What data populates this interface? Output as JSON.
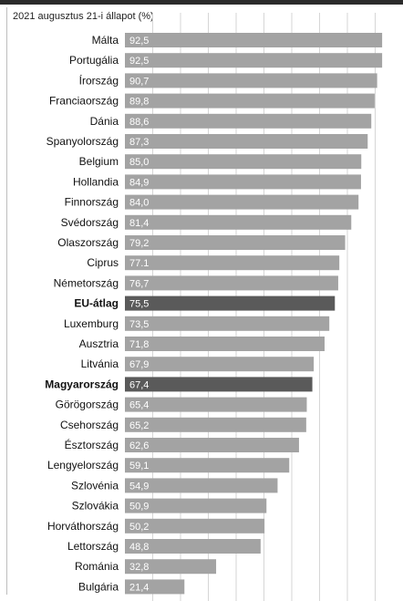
{
  "chart_data": {
    "type": "bar",
    "orientation": "horizontal",
    "subtitle": "2021 augusztus 21-i állapot (%)",
    "title": "",
    "xlabel": "",
    "ylabel": "",
    "xlim": [
      0,
      100
    ],
    "grid": true,
    "categories": [
      "Málta",
      "Portugália",
      "Írország",
      "Franciaország",
      "Dánia",
      "Spanyolország",
      "Belgium",
      "Hollandia",
      "Finnország",
      "Svédország",
      "Olaszország",
      "Ciprus",
      "Németország",
      "EU-átlag",
      "Luxemburg",
      "Ausztria",
      "Litvánia",
      "Magyarország",
      "Görögország",
      "Csehország",
      "Észtország",
      "Lengyelország",
      "Szlovénia",
      "Szlovákia",
      "Horváthország",
      "Lettország",
      "Románia",
      "Bulgária"
    ],
    "values": [
      92.5,
      92.5,
      90.7,
      89.8,
      88.6,
      87.3,
      85.0,
      84.9,
      84.0,
      81.4,
      79.2,
      77.1,
      76.7,
      75.5,
      73.5,
      71.8,
      67.9,
      67.4,
      65.4,
      65.2,
      62.6,
      59.1,
      54.9,
      50.9,
      50.2,
      48.8,
      32.8,
      21.4
    ],
    "value_labels": [
      "92,5",
      "92,5",
      "90,7",
      "89,8",
      "88,6",
      "87,3",
      "85,0",
      "84,9",
      "84,0",
      "81,4",
      "79,2",
      "77.1",
      "76,7",
      "75,5",
      "73,5",
      "71,8",
      "67,9",
      "67,4",
      "65,4",
      "65,2",
      "62,6",
      "59,1",
      "54,9",
      "50,9",
      "50,2",
      "48,8",
      "32,8",
      "21,4"
    ],
    "highlighted": [
      "EU-átlag",
      "Magyarország"
    ],
    "colors": {
      "bar": "#a3a3a3",
      "highlight": "#5a5a5a",
      "grid": "#d6d6d6",
      "value_text": "#ffffff"
    }
  }
}
